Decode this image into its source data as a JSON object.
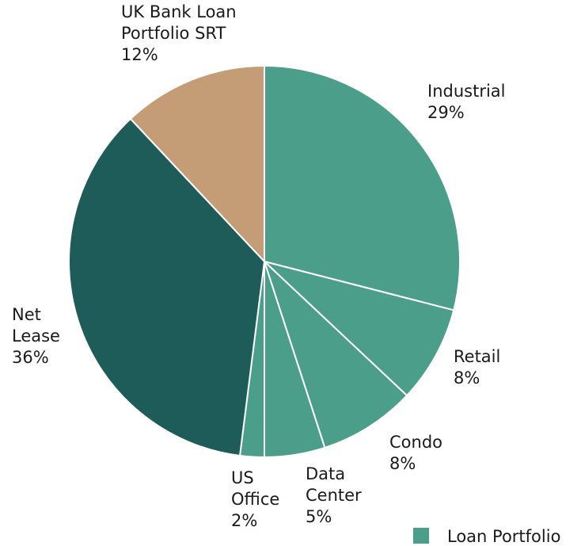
{
  "chart_data": {
    "type": "pie",
    "categories": [
      "Industrial",
      "Retail",
      "Condo",
      "Data\nCenter",
      "US\nOffice",
      "Net\nLease",
      "UK Bank Loan\nPortfolio SRT"
    ],
    "values": [
      29,
      8,
      8,
      5,
      2,
      36,
      12
    ],
    "value_labels": [
      "29%",
      "8%",
      "8%",
      "5%",
      "2%",
      "36%",
      "12%"
    ],
    "colors": [
      "#4a9e8a",
      "#4a9e8a",
      "#4a9e8a",
      "#4a9e8a",
      "#4a9e8a",
      "#1e5c5a",
      "#c49c76"
    ],
    "legend": {
      "label": "Loan Portfolio",
      "color": "#4a9e8a"
    },
    "legend_position": "bottom-right"
  }
}
